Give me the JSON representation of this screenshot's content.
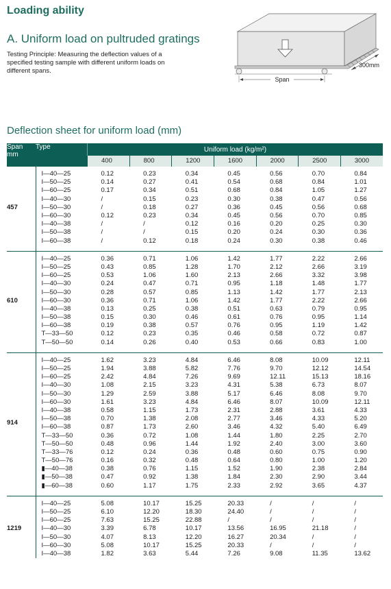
{
  "header": {
    "title": "Loading ability",
    "subtitle": "A. Uniform load on pultruded gratings",
    "principle": "Testing Principle: Measuring the deflection values of a specified testing sample with different uniform loads on different spans.",
    "table_title": "Deflection sheet for uniform load (mm)"
  },
  "diagram": {
    "arrow_icon": "down-arrow-icon",
    "span_label": "Span",
    "width_label": "300mm"
  },
  "table": {
    "span_header": "Span mm",
    "span_header_line1": "Span",
    "span_header_line2": "mm",
    "type_header": "Type",
    "load_header": "Uniform load (kg/m²)",
    "loads": [
      "400",
      "800",
      "1200",
      "1600",
      "2000",
      "2500",
      "3000"
    ],
    "groups": [
      {
        "span": "457",
        "rows": [
          {
            "type": "I—40—25",
            "values": [
              "0.12",
              "0.23",
              "0.34",
              "0.45",
              "0.56",
              "0.70",
              "0.84"
            ]
          },
          {
            "type": "I—50—25",
            "values": [
              "0.14",
              "0.27",
              "0.41",
              "0.54",
              "0.68",
              "0.84",
              "1.01"
            ]
          },
          {
            "type": "I—60—25",
            "values": [
              "0.17",
              "0.34",
              "0.51",
              "0.68",
              "0.84",
              "1.05",
              "1.27"
            ]
          },
          {
            "type": "I—40—30",
            "values": [
              "/",
              "0.15",
              "0.23",
              "0.30",
              "0.38",
              "0.47",
              "0.56"
            ]
          },
          {
            "type": "I—50—30",
            "values": [
              "/",
              "0.18",
              "0.27",
              "0.36",
              "0.45",
              "0.56",
              "0.68"
            ]
          },
          {
            "type": "I—60—30",
            "values": [
              "0.12",
              "0.23",
              "0.34",
              "0.45",
              "0.56",
              "0.70",
              "0.85"
            ]
          },
          {
            "type": "I—40—38",
            "values": [
              "/",
              "/",
              "0.12",
              "0.16",
              "0.20",
              "0.25",
              "0.30"
            ]
          },
          {
            "type": "I—50—38",
            "values": [
              "/",
              "/",
              "0.15",
              "0.20",
              "0.24",
              "0.30",
              "0.36"
            ]
          },
          {
            "type": "I—60—38",
            "values": [
              "/",
              "0.12",
              "0.18",
              "0.24",
              "0.30",
              "0.38",
              "0.46"
            ]
          }
        ]
      },
      {
        "span": "610",
        "rows": [
          {
            "type": "I—40—25",
            "values": [
              "0.36",
              "0.71",
              "1.06",
              "1.42",
              "1.77",
              "2.22",
              "2.66"
            ]
          },
          {
            "type": "I—50—25",
            "values": [
              "0.43",
              "0.85",
              "1.28",
              "1.70",
              "2.12",
              "2.66",
              "3.19"
            ]
          },
          {
            "type": "I—60—25",
            "values": [
              "0.53",
              "1.06",
              "1.60",
              "2.13",
              "2.66",
              "3.32",
              "3.98"
            ]
          },
          {
            "type": "I—40—30",
            "values": [
              "0.24",
              "0.47",
              "0.71",
              "0.95",
              "1.18",
              "1.48",
              "1.77"
            ]
          },
          {
            "type": "I—50—30",
            "values": [
              "0.28",
              "0.57",
              "0.85",
              "1.13",
              "1.42",
              "1.77",
              "2.13"
            ]
          },
          {
            "type": "I—60—30",
            "values": [
              "0.36",
              "0.71",
              "1.06",
              "1.42",
              "1.77",
              "2.22",
              "2.66"
            ]
          },
          {
            "type": "I—40—38",
            "values": [
              "0.13",
              "0.25",
              "0.38",
              "0.51",
              "0.63",
              "0.79",
              "0.95"
            ]
          },
          {
            "type": "I—50—38",
            "values": [
              "0.15",
              "0.30",
              "0.46",
              "0.61",
              "0.76",
              "0.95",
              "1.14"
            ]
          },
          {
            "type": "I—60—38",
            "values": [
              "0.19",
              "0.38",
              "0.57",
              "0.76",
              "0.95",
              "1.19",
              "1.42"
            ]
          },
          {
            "type": "T—33—50",
            "values": [
              "0.12",
              "0.23",
              "0.35",
              "0.46",
              "0.58",
              "0.72",
              "0.87"
            ]
          },
          {
            "type": "T—50—50",
            "values": [
              "0.14",
              "0.26",
              "0.40",
              "0.53",
              "0.66",
              "0.83",
              "1.00"
            ]
          }
        ]
      },
      {
        "span": "914",
        "rows": [
          {
            "type": "I—40—25",
            "values": [
              "1.62",
              "3.23",
              "4.84",
              "6.46",
              "8.08",
              "10.09",
              "12.11"
            ]
          },
          {
            "type": "I—50—25",
            "values": [
              "1.94",
              "3.88",
              "5.82",
              "7.76",
              "9.70",
              "12.12",
              "14.54"
            ]
          },
          {
            "type": "I—60—25",
            "values": [
              "2.42",
              "4.84",
              "7.26",
              "9.69",
              "12.11",
              "15.13",
              "18.16"
            ]
          },
          {
            "type": "I—40—30",
            "values": [
              "1.08",
              "2.15",
              "3.23",
              "4.31",
              "5.38",
              "6.73",
              "8.07"
            ]
          },
          {
            "type": "I—50—30",
            "values": [
              "1.29",
              "2.59",
              "3.88",
              "5.17",
              "6.46",
              "8.08",
              "9.70"
            ]
          },
          {
            "type": "I—60—30",
            "values": [
              "1.61",
              "3.23",
              "4.84",
              "6.46",
              "8.07",
              "10.09",
              "12.11"
            ]
          },
          {
            "type": "I—40—38",
            "values": [
              "0.58",
              "1.15",
              "1.73",
              "2.31",
              "2.88",
              "3.61",
              "4.33"
            ]
          },
          {
            "type": "I—50—38",
            "values": [
              "0.70",
              "1.38",
              "2.08",
              "2.77",
              "3.46",
              "4.33",
              "5.20"
            ]
          },
          {
            "type": "I—60—38",
            "values": [
              "0.87",
              "1.73",
              "2.60",
              "3.46",
              "4.32",
              "5.40",
              "6.49"
            ]
          },
          {
            "type": "T—33—50",
            "values": [
              "0.36",
              "0.72",
              "1.08",
              "1.44",
              "1.80",
              "2.25",
              "2.70"
            ]
          },
          {
            "type": "T—50—50",
            "values": [
              "0.48",
              "0.96",
              "1.44",
              "1.92",
              "2.40",
              "3.00",
              "3.60"
            ]
          },
          {
            "type": "T—33—76",
            "values": [
              "0.12",
              "0.24",
              "0.36",
              "0.48",
              "0.60",
              "0.75",
              "0.90"
            ]
          },
          {
            "type": "T—50—76",
            "values": [
              "0.16",
              "0.32",
              "0.48",
              "0.64",
              "0.80",
              "1.00",
              "1.20"
            ]
          },
          {
            "type": "▮—40—38",
            "values": [
              "0.38",
              "0.76",
              "1.15",
              "1.52",
              "1.90",
              "2.38",
              "2.84"
            ]
          },
          {
            "type": "▮—50—38",
            "values": [
              "0.47",
              "0.92",
              "1.38",
              "1.84",
              "2.30",
              "2.90",
              "3.44"
            ]
          },
          {
            "type": "▮—60—38",
            "values": [
              "0.60",
              "1.17",
              "1.75",
              "2.33",
              "2.92",
              "3.65",
              "4.37"
            ]
          }
        ]
      },
      {
        "span": "1219",
        "rows": [
          {
            "type": "I—40—25",
            "values": [
              "5.08",
              "10.17",
              "15.25",
              "20.33",
              "/",
              "/",
              "/"
            ]
          },
          {
            "type": "I—50—25",
            "values": [
              "6.10",
              "12.20",
              "18.30",
              "24.40",
              "/",
              "/",
              "/"
            ]
          },
          {
            "type": "I—60—25",
            "values": [
              "7.63",
              "15.25",
              "22.88",
              "/",
              "/",
              "/",
              "/"
            ]
          },
          {
            "type": "I—40—30",
            "values": [
              "3.39",
              "6.78",
              "10.17",
              "13.56",
              "16.95",
              "21.18",
              "/"
            ]
          },
          {
            "type": "I—50—30",
            "values": [
              "4.07",
              "8.13",
              "12.20",
              "16.27",
              "20.34",
              "/",
              "/"
            ]
          },
          {
            "type": "I—60—30",
            "values": [
              "5.08",
              "10.17",
              "15.25",
              "20.33",
              "/",
              "/",
              "/"
            ]
          },
          {
            "type": "I—40—38",
            "values": [
              "1.82",
              "3.63",
              "5.44",
              "7.26",
              "9.08",
              "11.35",
              "13.62"
            ]
          }
        ]
      }
    ]
  }
}
